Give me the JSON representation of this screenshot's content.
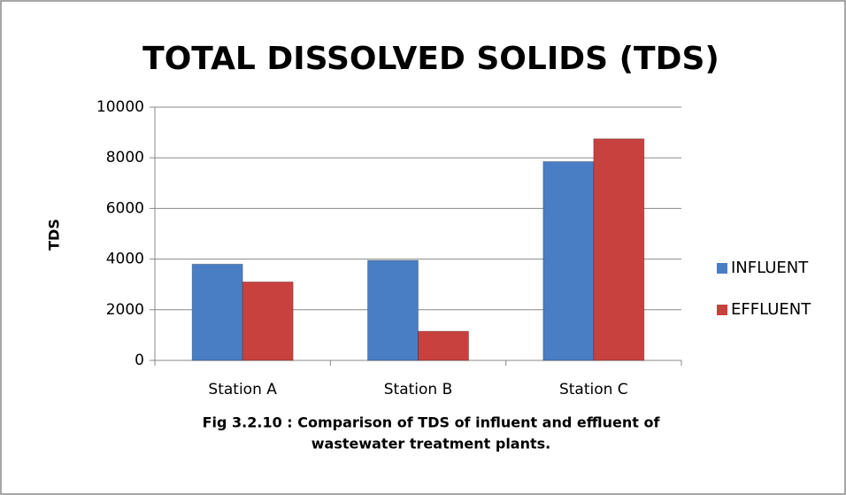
{
  "chart_data": {
    "type": "bar",
    "title": "TOTAL DISSOLVED SOLIDS (TDS)",
    "y_label": "TDS",
    "categories": [
      "Station A",
      "Station B",
      "Station C"
    ],
    "series": [
      {
        "name": "INFLUENT",
        "color": "#4a7ec4",
        "values": [
          3800,
          3950,
          7850
        ]
      },
      {
        "name": "EFFLUENT",
        "color": "#c9413e",
        "values": [
          3100,
          1150,
          8750
        ]
      }
    ],
    "ylim": [
      0,
      10000
    ],
    "yticks": [
      0,
      2000,
      4000,
      6000,
      8000,
      10000
    ],
    "grid": true,
    "legend": "right",
    "caption": [
      "Fig 3.2.10 : Comparison of TDS of influent and effluent of",
      "wastewater treatment plants."
    ]
  }
}
